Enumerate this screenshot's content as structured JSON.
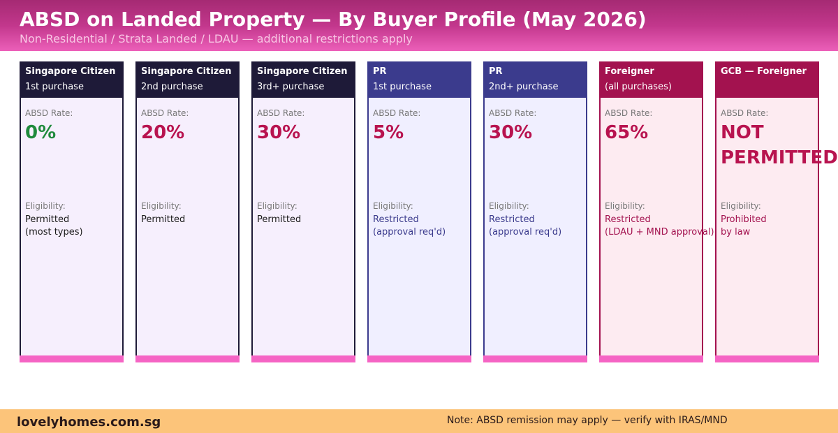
{
  "header": {
    "title": "ABSD on Landed Property — By Buyer Profile (May 2026)",
    "subtitle": "Non-Residential / Strata Landed / LDAU — additional restrictions apply"
  },
  "labels": {
    "rate": "ABSD Rate:",
    "eligibility": "Eligibility:"
  },
  "cards": [
    {
      "title": "Singapore Citizen",
      "sub": "1st purchase",
      "rate": "0%",
      "eligibility": "Permitted\n(most types)",
      "head_color": "#1e1a38",
      "body_color": "#f6effd",
      "border_color": "#1e1a38",
      "rate_color": "#1f8a3c",
      "elig_color": "#1a1a1a"
    },
    {
      "title": "Singapore Citizen",
      "sub": "2nd purchase",
      "rate": "20%",
      "eligibility": "Permitted",
      "head_color": "#1e1a38",
      "body_color": "#f6effd",
      "border_color": "#1e1a38",
      "rate_color": "#b8134f",
      "elig_color": "#1a1a1a"
    },
    {
      "title": "Singapore Citizen",
      "sub": "3rd+ purchase",
      "rate": "30%",
      "eligibility": "Permitted",
      "head_color": "#1e1a38",
      "body_color": "#f6effd",
      "border_color": "#1e1a38",
      "rate_color": "#b8134f",
      "elig_color": "#1a1a1a"
    },
    {
      "title": "PR",
      "sub": "1st purchase",
      "rate": "5%",
      "eligibility": "Restricted\n(approval req'd)",
      "head_color": "#3b3b8d",
      "body_color": "#f0efff",
      "border_color": "#3b3b8d",
      "rate_color": "#b8134f",
      "elig_color": "#3b3b8d"
    },
    {
      "title": "PR",
      "sub": "2nd+ purchase",
      "rate": "30%",
      "eligibility": "Restricted\n(approval req'd)",
      "head_color": "#3b3b8d",
      "body_color": "#f0efff",
      "border_color": "#3b3b8d",
      "rate_color": "#b8134f",
      "elig_color": "#3b3b8d"
    },
    {
      "title": "Foreigner",
      "sub": "(all purchases)",
      "rate": "65%",
      "eligibility": "Restricted\n(LDAU + MND approval)",
      "head_color": "#a3124f",
      "body_color": "#fdebf1",
      "border_color": "#a3124f",
      "rate_color": "#b8134f",
      "elig_color": "#a3124f"
    },
    {
      "title": "GCB — Foreigner",
      "sub": "",
      "rate": "NOT\nPERMITTED",
      "eligibility": "Prohibited\nby law",
      "head_color": "#a3124f",
      "body_color": "#fdebf1",
      "border_color": "#a3124f",
      "rate_color": "#b8134f",
      "elig_color": "#a3124f"
    }
  ],
  "accent_color": "#f564c4",
  "footer": {
    "brand": "lovelyhomes.com.sg",
    "note": "Note: ABSD remission may apply — verify with IRAS/MND"
  }
}
